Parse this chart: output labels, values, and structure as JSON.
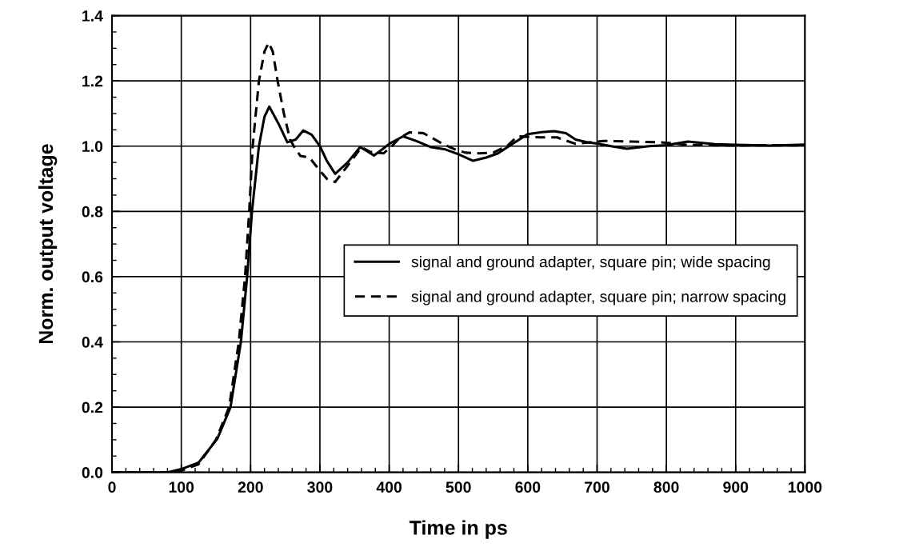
{
  "chart_data": {
    "type": "line",
    "xlabel": "Time in ps",
    "ylabel": "Norm. output voltage",
    "xlim": [
      0,
      1000
    ],
    "xticks": [
      0,
      100,
      200,
      300,
      400,
      500,
      600,
      700,
      800,
      900,
      1000
    ],
    "ylim": [
      0,
      1.4
    ],
    "yticks": [
      {
        "value": 0,
        "label": "0.0"
      },
      {
        "value": 0.2,
        "label": "0.2"
      },
      {
        "value": 0.4,
        "label": "0.4"
      },
      {
        "value": 0.6,
        "label": "0.6"
      },
      {
        "value": 0.8,
        "label": "0.8"
      },
      {
        "value": 1.0,
        "label": "1.0"
      },
      {
        "value": 1.2,
        "label": "1.2"
      },
      {
        "value": 1.4,
        "label": "1.4"
      }
    ],
    "grid": true,
    "legend": "right",
    "marker": "none",
    "series": [
      {
        "name": "signal and ground adapter, square pin; wide spacing",
        "color": "#000000",
        "line_style": "solid",
        "x": [
          0,
          80,
          100,
          125,
          152,
          171,
          186,
          195,
          202,
          212,
          220,
          227,
          240,
          253,
          265,
          276,
          288,
          300,
          310,
          322,
          340,
          358,
          368,
          378,
          390,
          400,
          420,
          440,
          460,
          481,
          500,
          521,
          540,
          557,
          580,
          600,
          620,
          638,
          655,
          669,
          685,
          700,
          720,
          743,
          775,
          800,
          831,
          870,
          899,
          950,
          1000
        ],
        "values": [
          0,
          0,
          0.01,
          0.03,
          0.103,
          0.2,
          0.4,
          0.6,
          0.8,
          1.0,
          1.09,
          1.121,
          1.07,
          1.012,
          1.02,
          1.048,
          1.035,
          1.0,
          0.955,
          0.915,
          0.95,
          0.997,
          0.985,
          0.971,
          0.99,
          1.007,
          1.03,
          1.015,
          0.997,
          0.99,
          0.975,
          0.955,
          0.965,
          0.978,
          1.01,
          1.037,
          1.043,
          1.046,
          1.04,
          1.02,
          1.012,
          1.008,
          1.0,
          0.992,
          1.0,
          1.003,
          1.014,
          1.006,
          1.004,
          1.002,
          1.005
        ]
      },
      {
        "name": "signal and ground adapter, square pin; narrow spacing",
        "color": "#000000",
        "line_style": "dashed",
        "x": [
          0,
          80,
          100,
          125,
          150,
          169,
          183,
          192,
          198,
          203,
          212,
          220,
          226,
          232,
          239,
          248,
          257,
          265,
          272,
          285,
          298,
          310,
          322,
          340,
          360,
          372,
          392,
          404,
          415,
          429,
          449,
          462,
          477,
          495,
          510,
          530,
          550,
          570,
          585,
          618,
          642,
          669,
          710,
          750,
          791,
          831,
          899,
          950,
          1000
        ],
        "values": [
          0,
          0,
          0.005,
          0.025,
          0.1,
          0.2,
          0.4,
          0.6,
          0.8,
          1.0,
          1.2,
          1.29,
          1.317,
          1.29,
          1.2,
          1.1,
          1.02,
          0.99,
          0.97,
          0.965,
          0.93,
          0.9,
          0.89,
          0.94,
          0.997,
          0.983,
          0.978,
          1.0,
          1.025,
          1.042,
          1.04,
          1.025,
          1.007,
          0.99,
          0.98,
          0.978,
          0.98,
          1.0,
          1.03,
          1.027,
          1.027,
          1.007,
          1.016,
          1.014,
          1.012,
          1.004,
          1.002,
          1.003,
          1.002
        ]
      }
    ]
  }
}
